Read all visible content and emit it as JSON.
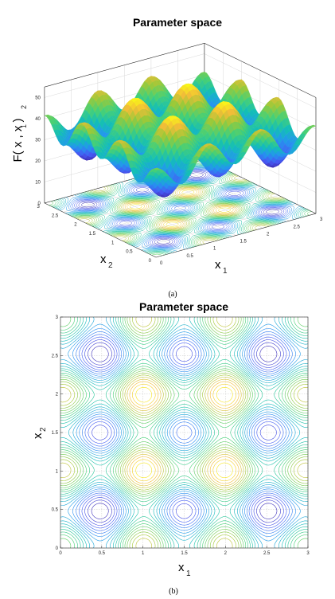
{
  "figure": {
    "label_a": "(a)",
    "label_b": "(b)"
  },
  "colors": {
    "low": "#3e26a8",
    "mid": "#13beb7",
    "high": "#f9fb15"
  },
  "chart_data": [
    {
      "type": "surface",
      "title": "Parameter space",
      "xlabel_base": "x",
      "xlabel_sub": "1",
      "ylabel_base": "x",
      "ylabel_sub": "2",
      "zlabel": "F( x  , x  )",
      "zlabel_sub1": "1",
      "zlabel_sub2": "2",
      "xlim": [
        0,
        3
      ],
      "ylim": [
        0,
        3
      ],
      "zlim": [
        0,
        55
      ],
      "xticks": [
        "0",
        "0.5",
        "1",
        "1.5",
        "2",
        "2.5",
        "3"
      ],
      "yticks": [
        "0",
        "0.5",
        "1",
        "1.5",
        "2",
        "2.5",
        "3"
      ],
      "zticks": [
        "0",
        "10",
        "20",
        "30",
        "40",
        "50"
      ],
      "colormap": "parula",
      "peak": {
        "x1": 1.5,
        "x2": 1.5,
        "F": 52
      },
      "grid": true
    },
    {
      "type": "contour",
      "title": "Parameter space",
      "xlabel_base": "x",
      "xlabel_sub": "1",
      "ylabel_base": "x",
      "ylabel_sub": "2",
      "xlim": [
        0,
        3
      ],
      "ylim": [
        0,
        3
      ],
      "xticks": [
        "0",
        "0.5",
        "1",
        "1.5",
        "2",
        "2.5",
        "3"
      ],
      "yticks": [
        "0",
        "0.5",
        "1",
        "1.5",
        "2",
        "2.5",
        "3"
      ],
      "levels": 24,
      "grid": true
    }
  ]
}
